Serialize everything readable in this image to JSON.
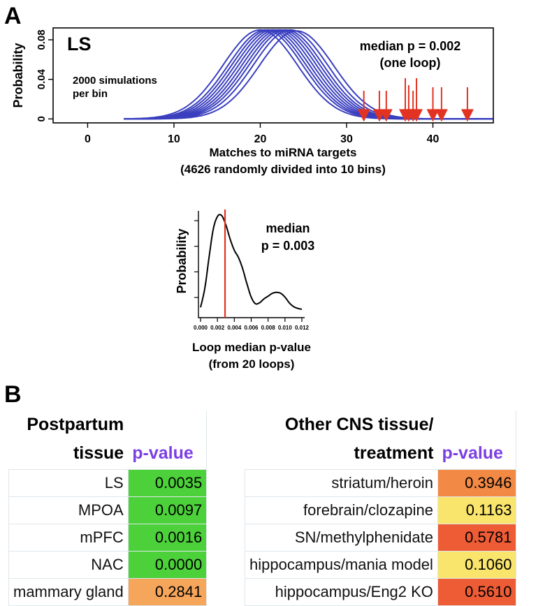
{
  "panels": {
    "a_label": "A",
    "b_label": "B"
  },
  "chart_data": [
    {
      "type": "line",
      "id": "simulation-distributions",
      "title": "LS",
      "annotation_left": [
        "2000 simulations",
        "per bin"
      ],
      "annotation_right": [
        "median p = 0.002",
        "(one loop)"
      ],
      "xlabel": [
        "Matches to miRNA targets",
        "(4626 randomly divided into 10 bins)"
      ],
      "ylabel": "Probability",
      "xlim": [
        -4,
        47
      ],
      "ylim": [
        -0.004,
        0.092
      ],
      "xticks": [
        0,
        10,
        20,
        30,
        40
      ],
      "yticks": [
        0,
        0.04,
        0.08
      ],
      "ytick_labels": [
        "0",
        "0.04",
        "0.08"
      ],
      "series_color": "#3a3fbf",
      "arrow_color": "#e23322",
      "series": [
        {
          "name": "bin1",
          "mean": 20.0,
          "sd": 4.3,
          "peak": 0.09
        },
        {
          "name": "bin2",
          "mean": 20.6,
          "sd": 4.3,
          "peak": 0.09
        },
        {
          "name": "bin3",
          "mean": 21.0,
          "sd": 4.3,
          "peak": 0.09
        },
        {
          "name": "bin4",
          "mean": 21.4,
          "sd": 4.3,
          "peak": 0.09
        },
        {
          "name": "bin5",
          "mean": 21.8,
          "sd": 4.3,
          "peak": 0.09
        },
        {
          "name": "bin6",
          "mean": 22.2,
          "sd": 4.3,
          "peak": 0.09
        },
        {
          "name": "bin7",
          "mean": 22.6,
          "sd": 4.3,
          "peak": 0.09
        },
        {
          "name": "bin8",
          "mean": 23.0,
          "sd": 4.3,
          "peak": 0.09
        },
        {
          "name": "bin9",
          "mean": 23.5,
          "sd": 4.3,
          "peak": 0.09
        },
        {
          "name": "bin10",
          "mean": 24.2,
          "sd": 4.3,
          "peak": 0.089
        }
      ],
      "observed_matches": [
        32,
        33.8,
        34.6,
        36.8,
        37.2,
        37.7,
        38.1,
        40,
        41,
        44
      ]
    },
    {
      "type": "line",
      "id": "loop-median-density",
      "annotation": [
        "median",
        "p = 0.003"
      ],
      "xlabel": [
        "Loop median p-value",
        "(from 20 loops)"
      ],
      "ylabel": "Probability",
      "xlim": [
        0.0,
        0.012
      ],
      "ylim": [
        0,
        1.05
      ],
      "xticks": [
        0.0,
        0.002,
        0.004,
        0.006,
        0.008,
        0.01,
        0.012
      ],
      "xtick_labels": [
        "0.000",
        "0.002",
        "0.004",
        "0.006",
        "0.008",
        "0.010",
        "0.012"
      ],
      "x": [
        0.0,
        0.0005,
        0.001,
        0.0015,
        0.002,
        0.0025,
        0.003,
        0.0035,
        0.004,
        0.0045,
        0.005,
        0.0055,
        0.006,
        0.0065,
        0.007,
        0.0075,
        0.008,
        0.0085,
        0.009,
        0.0095,
        0.01,
        0.0105,
        0.011,
        0.0115,
        0.012
      ],
      "y": [
        0.02,
        0.22,
        0.55,
        0.85,
        0.99,
        1.0,
        0.9,
        0.75,
        0.63,
        0.55,
        0.43,
        0.27,
        0.13,
        0.06,
        0.07,
        0.11,
        0.14,
        0.17,
        0.18,
        0.17,
        0.13,
        0.07,
        0.03,
        0.01,
        0.0
      ],
      "median_line_x": 0.0029,
      "median_line_color": "#e23322",
      "line_color": "#000000"
    }
  ],
  "postpartum_table": {
    "header_line1": "Postpartum",
    "header_line2": "tissue",
    "pvalue_header": "p-value",
    "rows": [
      {
        "name": "LS",
        "value": "0.0035",
        "color": "#4cd13a"
      },
      {
        "name": "MPOA",
        "value": "0.0097",
        "color": "#4cd13a"
      },
      {
        "name": "mPFC",
        "value": "0.0016",
        "color": "#4cd13a"
      },
      {
        "name": "NAC",
        "value": "0.0000",
        "color": "#4cd13a"
      },
      {
        "name": "mammary gland",
        "value": "0.2841",
        "color": "#f6a65b"
      }
    ]
  },
  "other_table": {
    "header_line1": "Other CNS tissue/",
    "header_line2": "treatment",
    "pvalue_header": "p-value",
    "rows": [
      {
        "name": "striatum/heroin",
        "value": "0.3946",
        "color": "#f28a45"
      },
      {
        "name": "forebrain/clozapine",
        "value": "0.1163",
        "color": "#f9e46c"
      },
      {
        "name": "SN/methylphenidate",
        "value": "0.5781",
        "color": "#ee5c36"
      },
      {
        "name": "hippocampus/mania model",
        "value": "0.1060",
        "color": "#f9e46c"
      },
      {
        "name": "hippocampus/Eng2 KO",
        "value": "0.5610",
        "color": "#ee5c36"
      }
    ]
  }
}
